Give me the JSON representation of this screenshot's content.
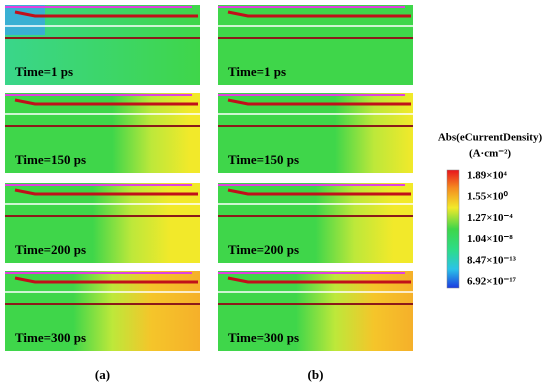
{
  "columns": [
    {
      "caption": "(a)",
      "panels": [
        "Time=1 ps",
        "Time=150 ps",
        "Time=200 ps",
        "Time=300 ps"
      ]
    },
    {
      "caption": "(b)",
      "panels": [
        "Time=1 ps",
        "Time=150 ps",
        "Time=200 ps",
        "Time=300 ps"
      ]
    }
  ],
  "colorbar": {
    "title": "Abs(eCurrentDensity)",
    "unit": "(A·cm⁻²)",
    "labels": [
      "1.89×10⁴",
      "1.55×10⁰",
      "1.27×10⁻⁴",
      "1.04×10⁻⁸",
      "8.47×10⁻¹³",
      "6.92×10⁻¹⁷"
    ]
  }
}
